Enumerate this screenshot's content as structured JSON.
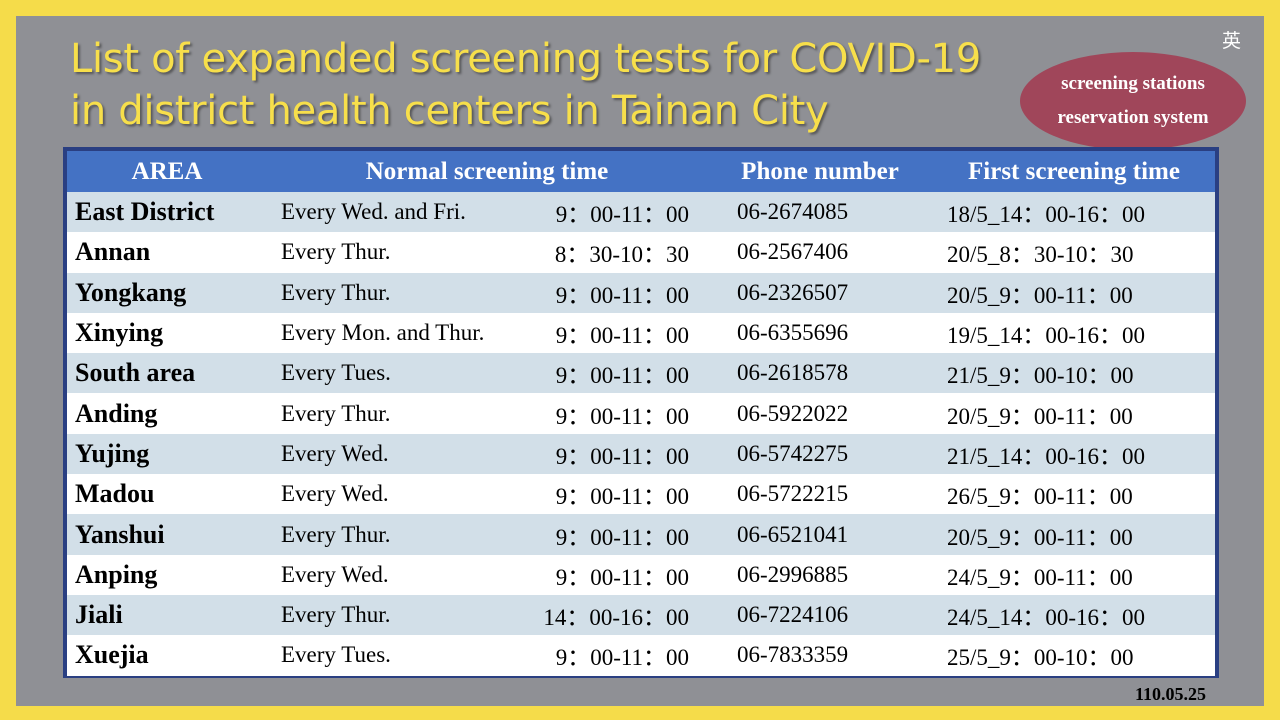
{
  "title": {
    "line1": "List of expanded screening tests for COVID-19",
    "line2": "in district health centers in Tainan City"
  },
  "lang_toggle": "英",
  "reservation": {
    "line1": "screening stations",
    "line2": "reservation system"
  },
  "table": {
    "headers": {
      "area": "AREA",
      "normal": "Normal screening time",
      "phone": "Phone number",
      "first": "First screening time"
    },
    "rows": [
      {
        "area": "East District",
        "day": "Every Wed. and Fri.",
        "time": "9：00-11：00",
        "phone": "06-2674085",
        "first": "18/5_14：00-16：00"
      },
      {
        "area": "Annan",
        "day": "Every Thur.",
        "time": "8：30-10：30",
        "phone": "06-2567406",
        "first": "20/5_8：30-10：30"
      },
      {
        "area": "Yongkang",
        "day": "Every Thur.",
        "time": "9：00-11：00",
        "phone": "06-2326507",
        "first": "20/5_9：00-11：00"
      },
      {
        "area": "Xinying",
        "day": "Every Mon. and Thur.",
        "time": "9：00-11：00",
        "phone": "06-6355696",
        "first": "19/5_14：00-16：00"
      },
      {
        "area": "South area",
        "day": "Every Tues.",
        "time": "9：00-11：00",
        "phone": "06-2618578",
        "first": "21/5_9：00-10：00"
      },
      {
        "area": "Anding",
        "day": "Every Thur.",
        "time": "9：00-11：00",
        "phone": "06-5922022",
        "first": "20/5_9：00-11：00"
      },
      {
        "area": "Yujing",
        "day": "Every Wed.",
        "time": "9：00-11：00",
        "phone": "06-5742275",
        "first": "21/5_14：00-16：00"
      },
      {
        "area": "Madou",
        "day": "Every Wed.",
        "time": "9：00-11：00",
        "phone": "06-5722215",
        "first": "26/5_9：00-11：00"
      },
      {
        "area": "Yanshui",
        "day": "Every Thur.",
        "time": "9：00-11：00",
        "phone": "06-6521041",
        "first": "20/5_9：00-11：00"
      },
      {
        "area": "Anping",
        "day": "Every Wed.",
        "time": "9：00-11：00",
        "phone": "06-2996885",
        "first": "24/5_9：00-11：00"
      },
      {
        "area": "Jiali",
        "day": "Every Thur.",
        "time": "14：00-16：00",
        "phone": "06-7224106",
        "first": "24/5_14：00-16：00"
      },
      {
        "area": "Xuejia",
        "day": "Every Tues.",
        "time": "9：00-11：00",
        "phone": "06-7833359",
        "first": "25/5_9：00-10：00"
      }
    ]
  },
  "date": "110.05.25",
  "colors": {
    "frame": "#f5dc4a",
    "panel": "#8f9095",
    "title": "#f7df4b",
    "header": "#4472c4",
    "row_alt": "#d2dfe8",
    "button": "#a0465a",
    "border": "#2a3f82"
  }
}
